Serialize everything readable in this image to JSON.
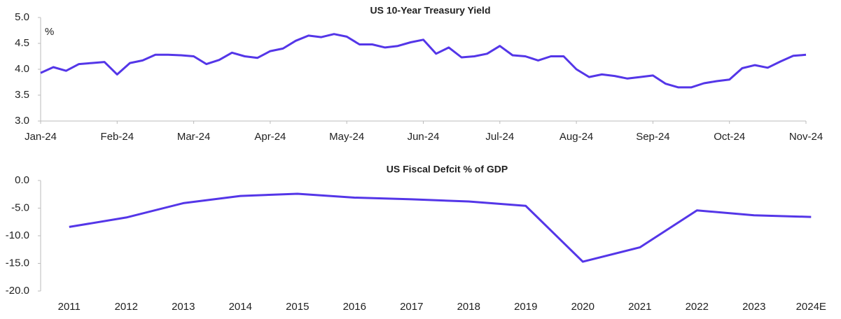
{
  "chart_data": [
    {
      "type": "line",
      "title": "US 10-Year Treasury Yield",
      "annotation": "%",
      "categories": [
        "Jan-24",
        null,
        null,
        null,
        null,
        null,
        "Feb-24",
        null,
        null,
        null,
        null,
        null,
        "Mar-24",
        null,
        null,
        null,
        null,
        null,
        "Apr-24",
        null,
        null,
        null,
        null,
        null,
        "May-24",
        null,
        null,
        null,
        null,
        null,
        "Jun-24",
        null,
        null,
        null,
        null,
        null,
        "Jul-24",
        null,
        null,
        null,
        null,
        null,
        "Aug-24",
        null,
        null,
        null,
        null,
        null,
        "Sep-24",
        null,
        null,
        null,
        null,
        null,
        "Oct-24",
        null,
        null,
        null,
        null,
        null,
        "Nov-24"
      ],
      "series": [
        {
          "name": "US 10-Year Treasury Yield",
          "color": "#5436e8",
          "values": [
            3.93,
            4.04,
            3.97,
            4.1,
            4.12,
            4.14,
            3.9,
            4.12,
            4.17,
            4.28,
            4.28,
            4.27,
            4.25,
            4.1,
            4.18,
            4.32,
            4.25,
            4.22,
            4.35,
            4.4,
            4.55,
            4.65,
            4.62,
            4.68,
            4.63,
            4.48,
            4.48,
            4.42,
            4.45,
            4.52,
            4.57,
            4.3,
            4.42,
            4.23,
            4.25,
            4.3,
            4.45,
            4.27,
            4.25,
            4.17,
            4.25,
            4.25,
            4.0,
            3.85,
            3.9,
            3.87,
            3.82,
            3.85,
            3.88,
            3.72,
            3.65,
            3.65,
            3.73,
            3.77,
            3.8,
            4.02,
            4.08,
            4.03,
            4.15,
            4.26,
            4.28
          ]
        }
      ],
      "ylim": [
        3.0,
        5.0
      ],
      "yticks": [
        {
          "value": 3.0,
          "label": "3.0"
        },
        {
          "value": 3.5,
          "label": "3.5"
        },
        {
          "value": 4.0,
          "label": "4.0"
        },
        {
          "value": 4.5,
          "label": "4.5"
        },
        {
          "value": 5.0,
          "label": "5.0"
        }
      ]
    },
    {
      "type": "line",
      "title": "US Fiscal Defcit % of GDP",
      "categories": [
        "2011",
        "2012",
        "2013",
        "2014",
        "2015",
        "2016",
        "2017",
        "2018",
        "2019",
        "2020",
        "2021",
        "2022",
        "2023",
        "2024E"
      ],
      "series": [
        {
          "name": "US Fiscal Defcit % of GDP",
          "color": "#5436e8",
          "values": [
            -8.4,
            -6.7,
            -4.1,
            -2.8,
            -2.4,
            -3.1,
            -3.4,
            -3.8,
            -4.6,
            -14.7,
            -12.1,
            -5.4,
            -6.3,
            -6.6
          ]
        }
      ],
      "ylim": [
        -20,
        0
      ],
      "yticks": [
        {
          "value": -20,
          "label": "-20.0"
        },
        {
          "value": -15,
          "label": "-15.0"
        },
        {
          "value": -10,
          "label": "-10.0"
        },
        {
          "value": -5,
          "label": "-5.0"
        },
        {
          "value": 0,
          "label": "0.0"
        }
      ]
    }
  ]
}
